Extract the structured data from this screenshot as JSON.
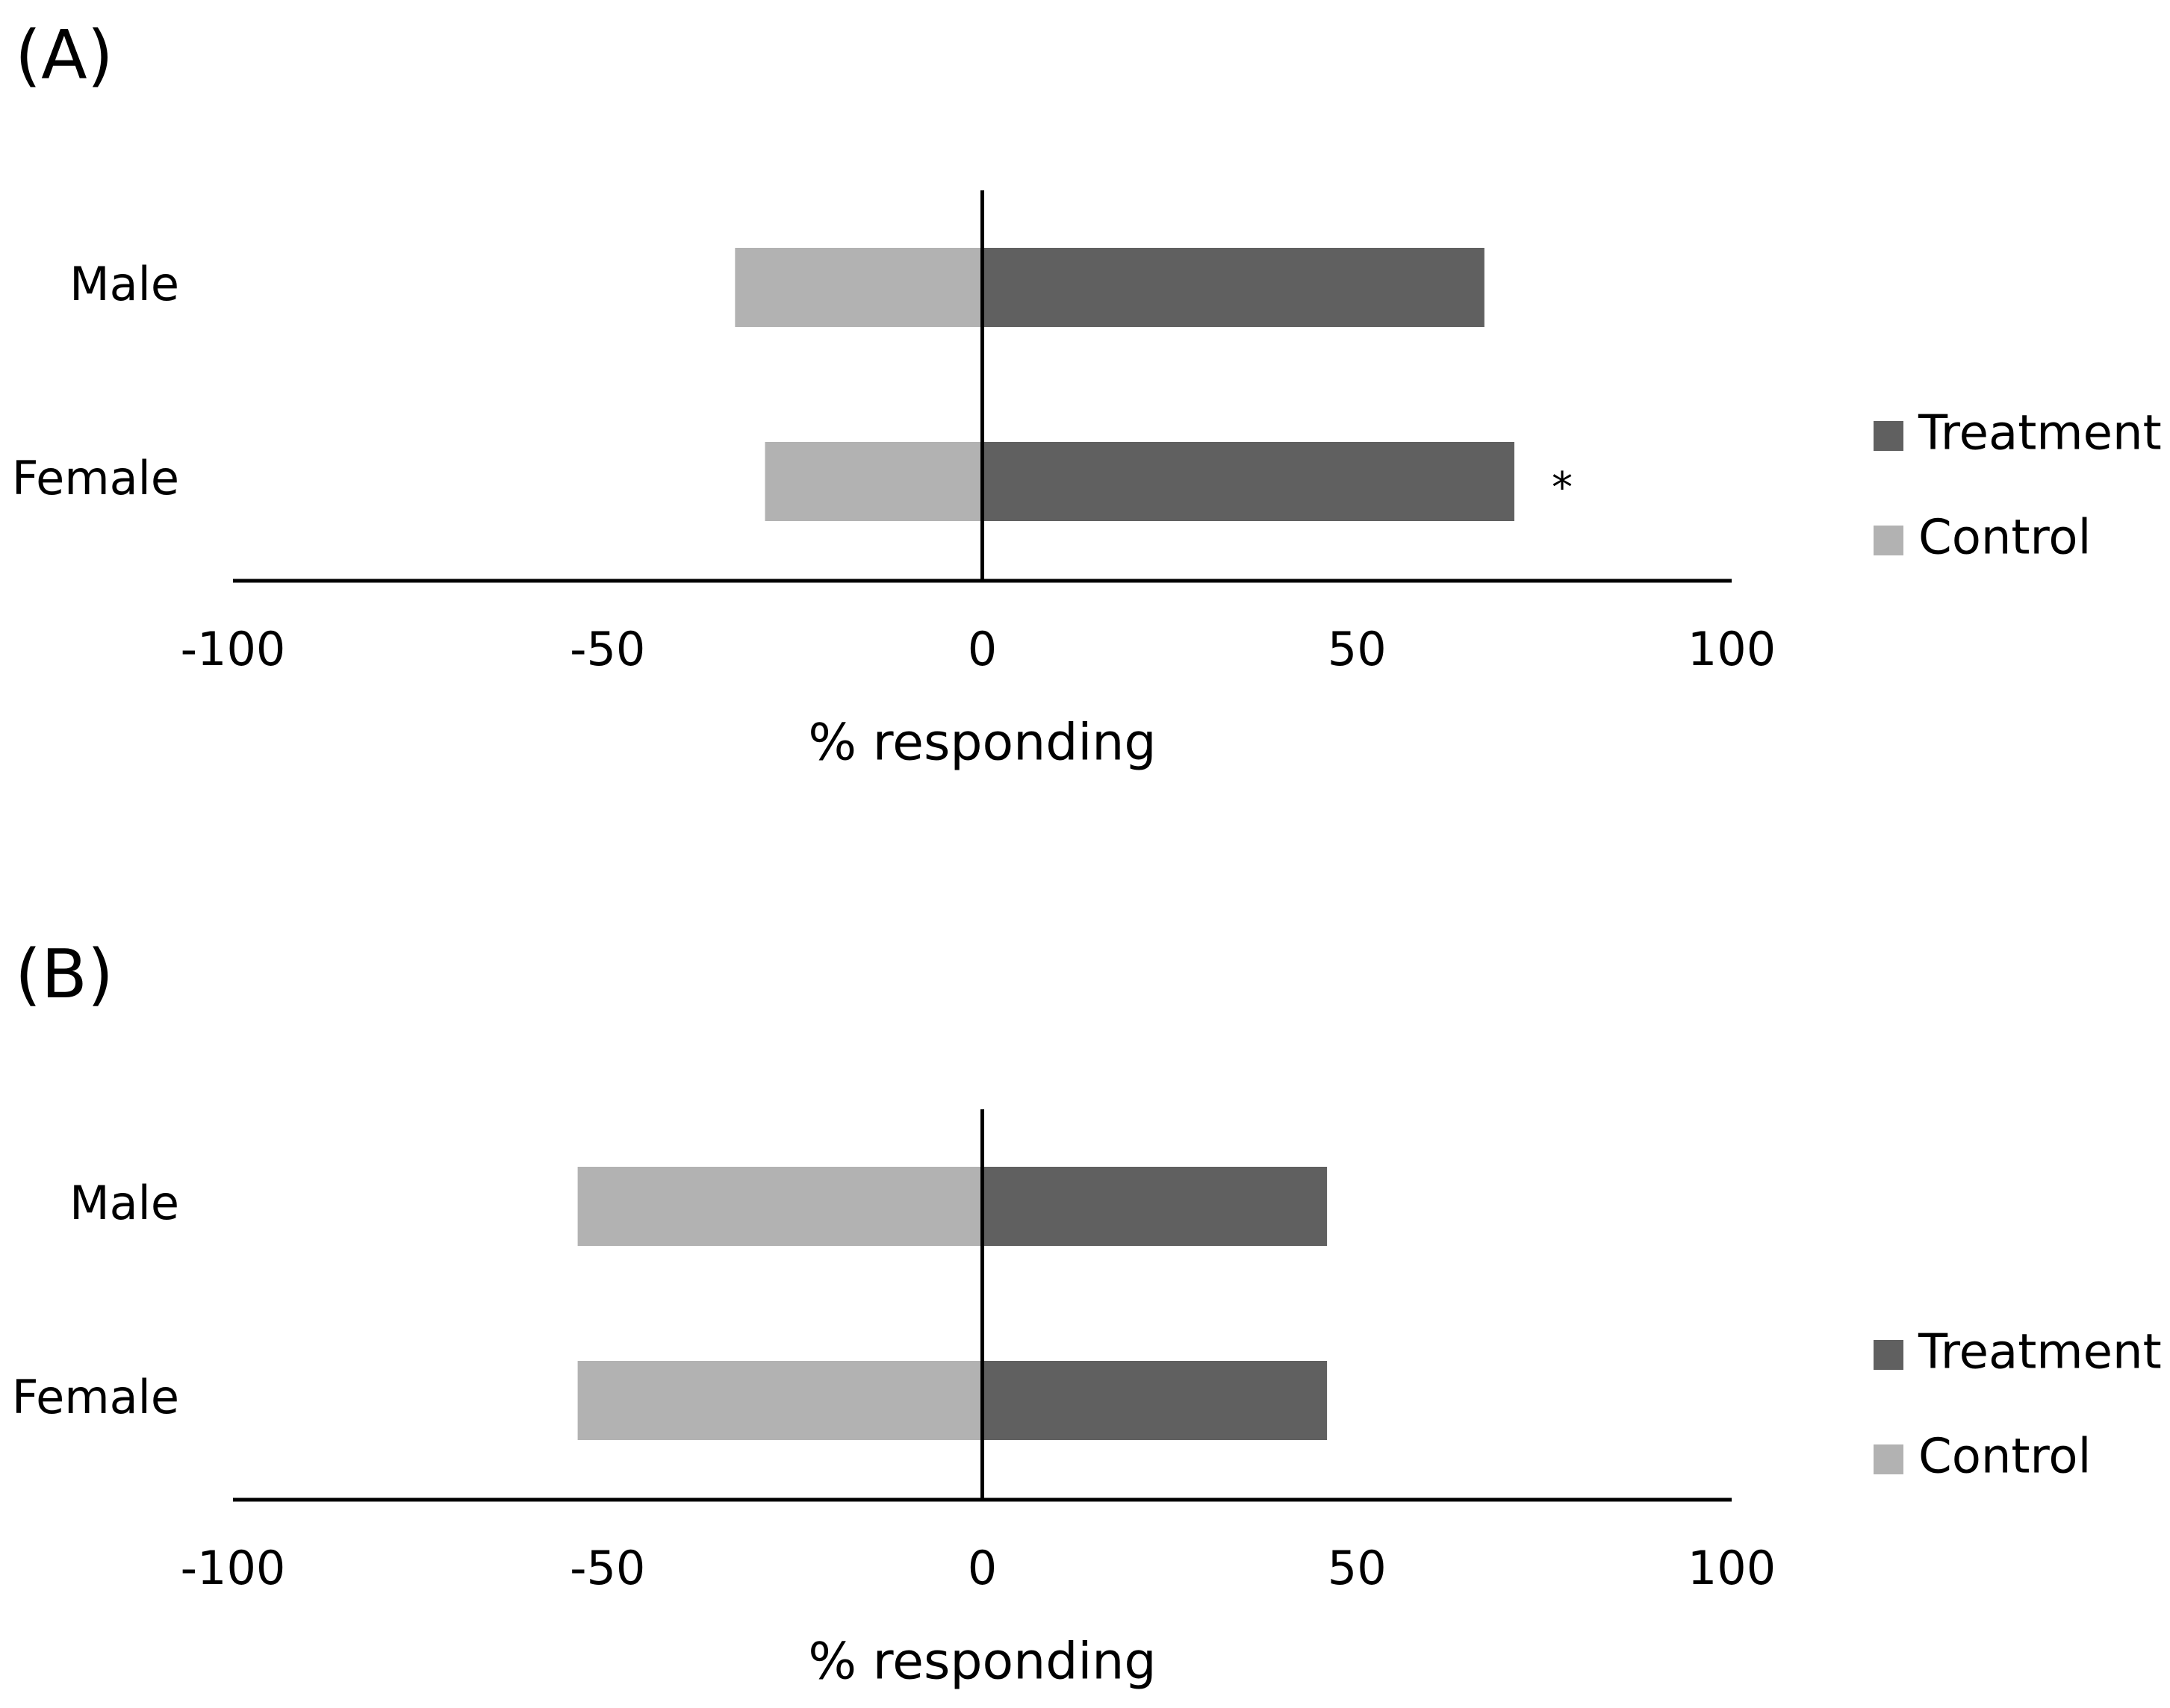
{
  "chart_data": [
    {
      "type": "bar",
      "orientation": "horizontal",
      "title": "(A)",
      "xlabel": "% responding",
      "categories": [
        "Male",
        "Female"
      ],
      "series": [
        {
          "name": "Treatment",
          "color": "#606060",
          "values": [
            67,
            71
          ],
          "annotations": [
            null,
            "*"
          ]
        },
        {
          "name": "Control",
          "color": "#b2b2b2",
          "values": [
            -33,
            -29
          ]
        }
      ],
      "xlim": [
        -100,
        100
      ],
      "xticks": [
        -100,
        -50,
        0,
        50,
        100
      ],
      "legend": "right"
    },
    {
      "type": "bar",
      "orientation": "horizontal",
      "title": "(B)",
      "xlabel": "% responding",
      "categories": [
        "Male",
        "Female"
      ],
      "series": [
        {
          "name": "Treatment",
          "color": "#606060",
          "values": [
            46,
            46
          ]
        },
        {
          "name": "Control",
          "color": "#b2b2b2",
          "values": [
            -54,
            -54
          ]
        }
      ],
      "xlim": [
        -100,
        100
      ],
      "xticks": [
        -100,
        -50,
        0,
        50,
        100
      ],
      "legend": "right"
    }
  ]
}
